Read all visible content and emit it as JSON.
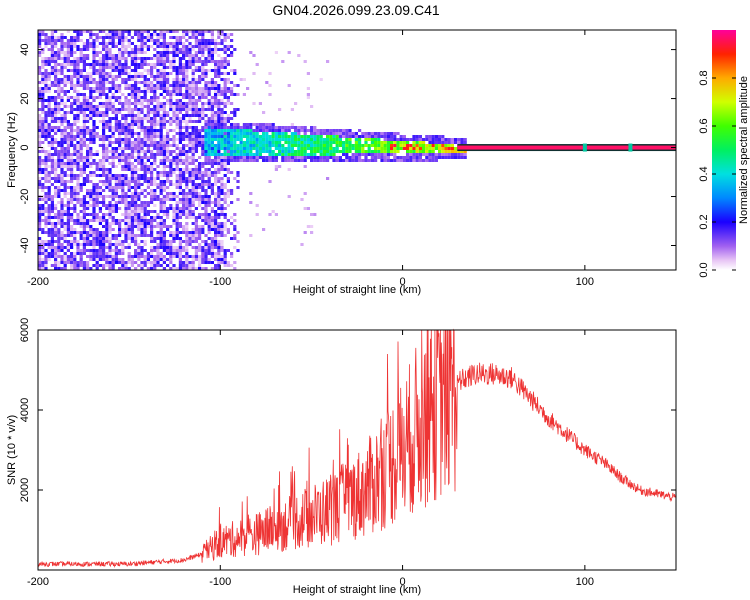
{
  "title": "GN04.2026.099.23.09.C41",
  "chart_data": [
    {
      "type": "heatmap",
      "name": "spectrogram",
      "xlabel": "Height of straight line (km)",
      "ylabel": "Frequency (Hz)",
      "xlim": [
        -200,
        150
      ],
      "ylim": [
        -50,
        48
      ],
      "xticks": [
        -200,
        -100,
        0,
        100
      ],
      "yticks": [
        -40,
        -20,
        0,
        20,
        40
      ],
      "colorbar": {
        "label": "Normalized spectral amplitude",
        "range": [
          0,
          1
        ],
        "ticks": [
          "0.0",
          "0.2",
          "0.4",
          "0.6",
          "0.8"
        ],
        "tick_values": [
          0.0,
          0.2,
          0.4,
          0.6,
          0.8
        ]
      },
      "features": {
        "noise_region_x": [
          -200,
          -90
        ],
        "signal_band_x": [
          -110,
          35
        ],
        "signal_band_half_width_hz": [
          6,
          1.5
        ],
        "tone_line_x": [
          30,
          150
        ],
        "tone_line_freq_hz": 0
      }
    },
    {
      "type": "line",
      "name": "snr",
      "xlabel": "Height of straight line (km)",
      "ylabel": "SNR (10 * v/v)",
      "xlim": [
        -200,
        150
      ],
      "ylim": [
        0,
        6000
      ],
      "xticks": [
        -200,
        -100,
        0,
        100
      ],
      "yticks": [
        2000,
        4000,
        6000
      ],
      "color": "#ee3333",
      "envelope": {
        "x": [
          -200,
          -150,
          -120,
          -110,
          -100,
          -80,
          -60,
          -40,
          -20,
          -10,
          0,
          10,
          20,
          30,
          40,
          50,
          60,
          70,
          80,
          90,
          100,
          110,
          120,
          130,
          140,
          150
        ],
        "y": [
          150,
          150,
          250,
          400,
          700,
          900,
          1200,
          1500,
          2000,
          2500,
          3000,
          3700,
          4300,
          4700,
          4900,
          4900,
          4800,
          4300,
          3800,
          3400,
          3000,
          2700,
          2300,
          2000,
          1900,
          1800
        ]
      }
    }
  ]
}
